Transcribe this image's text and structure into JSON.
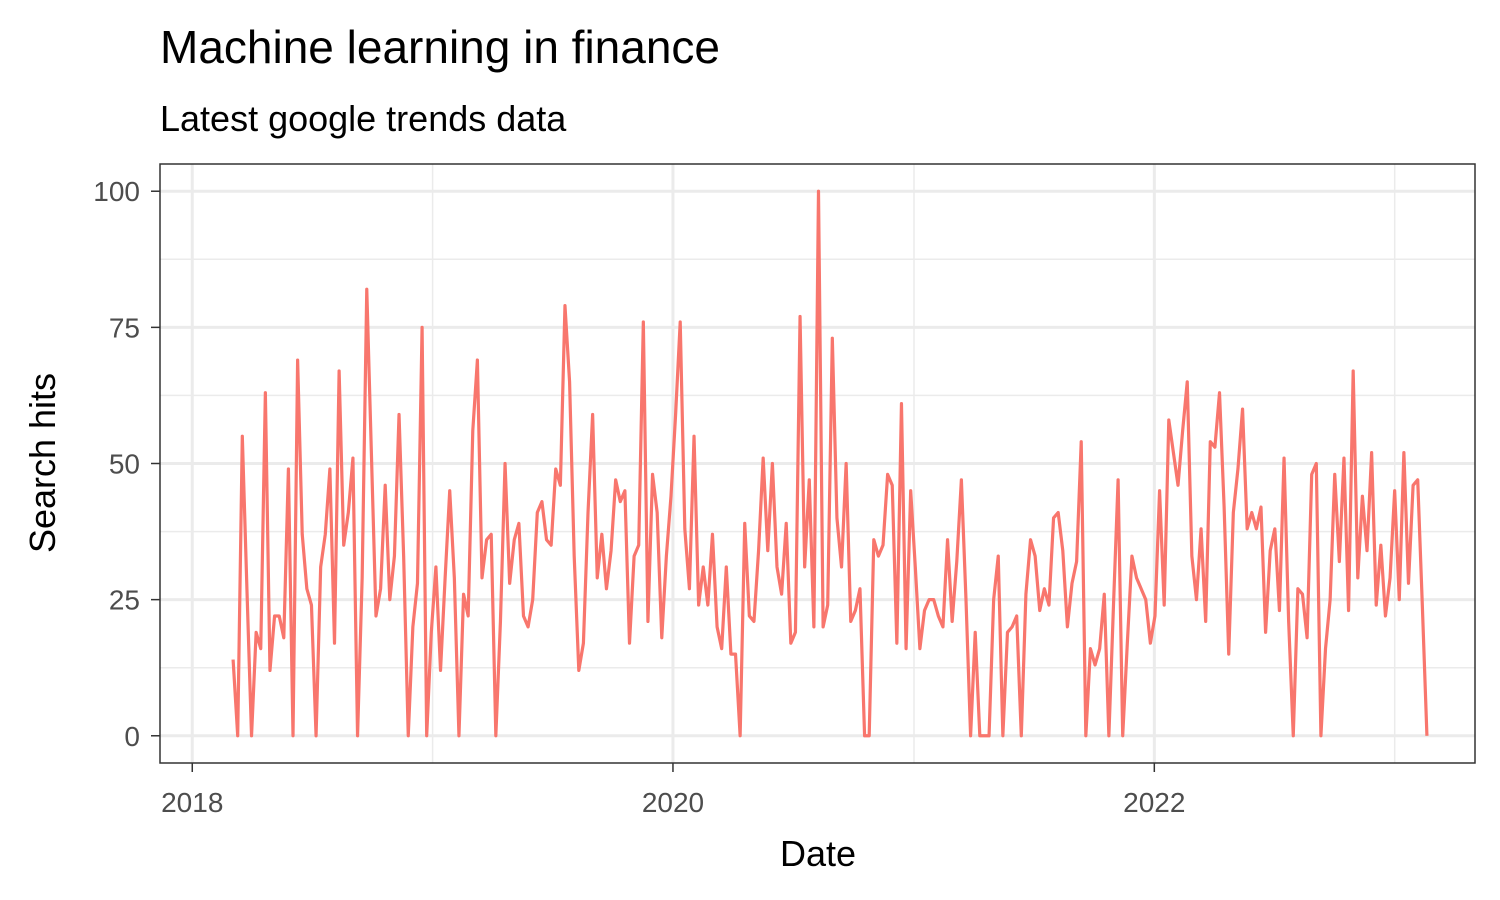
{
  "chart_data": {
    "type": "line",
    "title": "Machine learning in finance",
    "subtitle": "Latest google trends data",
    "xlabel": "Date",
    "ylabel": "Search hits",
    "x_axis_type": "date",
    "x_start": "2018-03-04",
    "x_step_days": 7,
    "xlim": [
      "2017-11-13",
      "2023-05-03"
    ],
    "ylim": [
      -5,
      105
    ],
    "x_ticks": [
      {
        "date": "2018-01-01",
        "label": "2018"
      },
      {
        "date": "2020-01-01",
        "label": "2020"
      },
      {
        "date": "2022-01-01",
        "label": "2022"
      }
    ],
    "x_minor_ticks": [
      "2019-01-01",
      "2021-01-01",
      "2023-01-01"
    ],
    "y_ticks": [
      0,
      25,
      50,
      75,
      100
    ],
    "y_minor_ticks": [
      12.5,
      37.5,
      62.5,
      87.5
    ],
    "grid": true,
    "legend": "none",
    "line_color": "#F8766D",
    "series": [
      {
        "values": [
          14,
          0,
          55,
          27,
          0,
          19,
          16,
          63,
          12,
          22,
          22,
          18,
          49,
          0,
          69,
          37,
          27,
          24,
          0,
          31,
          37,
          49,
          17,
          67,
          35,
          41,
          51,
          0,
          29,
          82,
          52,
          22,
          27,
          46,
          25,
          33,
          59,
          33,
          0,
          20,
          28,
          75,
          0,
          19,
          31,
          12,
          29,
          45,
          29,
          0,
          26,
          22,
          56,
          69,
          29,
          36,
          37,
          0,
          21,
          50,
          28,
          36,
          39,
          22,
          20,
          25,
          41,
          43,
          36,
          35,
          49,
          46,
          79,
          65,
          33,
          12,
          17,
          41,
          59,
          29,
          37,
          27,
          34,
          47,
          43,
          45,
          17,
          33,
          35,
          76,
          21,
          48,
          41,
          18,
          33,
          44,
          59,
          76,
          38,
          27,
          55,
          24,
          31,
          24,
          37,
          20,
          16,
          31,
          15,
          15,
          0,
          39,
          22,
          21,
          34,
          51,
          34,
          50,
          31,
          26,
          39,
          17,
          19,
          77,
          31,
          47,
          20,
          100,
          20,
          24,
          73,
          40,
          31,
          50,
          21,
          23,
          27,
          0,
          0,
          36,
          33,
          35,
          48,
          46,
          17,
          61,
          16,
          45,
          31,
          16,
          23,
          25,
          25,
          22,
          20,
          36,
          21,
          32,
          47,
          25,
          0,
          19,
          0,
          0,
          0,
          25,
          33,
          0,
          19,
          20,
          22,
          0,
          26,
          36,
          33,
          23,
          27,
          24,
          40,
          41,
          34,
          20,
          28,
          32,
          54,
          0,
          16,
          13,
          16,
          26,
          0,
          24,
          47,
          0,
          17,
          33,
          29,
          27,
          25,
          17,
          22,
          45,
          24,
          58,
          52,
          46,
          56,
          65,
          33,
          25,
          38,
          21,
          54,
          53,
          63,
          42,
          15,
          41,
          49,
          60,
          38,
          41,
          38,
          42,
          19,
          34,
          38,
          23,
          51,
          21,
          0,
          27,
          26,
          18,
          48,
          50,
          0,
          16,
          25,
          48,
          32,
          51,
          23,
          67,
          29,
          44,
          34,
          52,
          24,
          35,
          22,
          29,
          45,
          25,
          52,
          28,
          46,
          47,
          24,
          0
        ]
      }
    ]
  }
}
